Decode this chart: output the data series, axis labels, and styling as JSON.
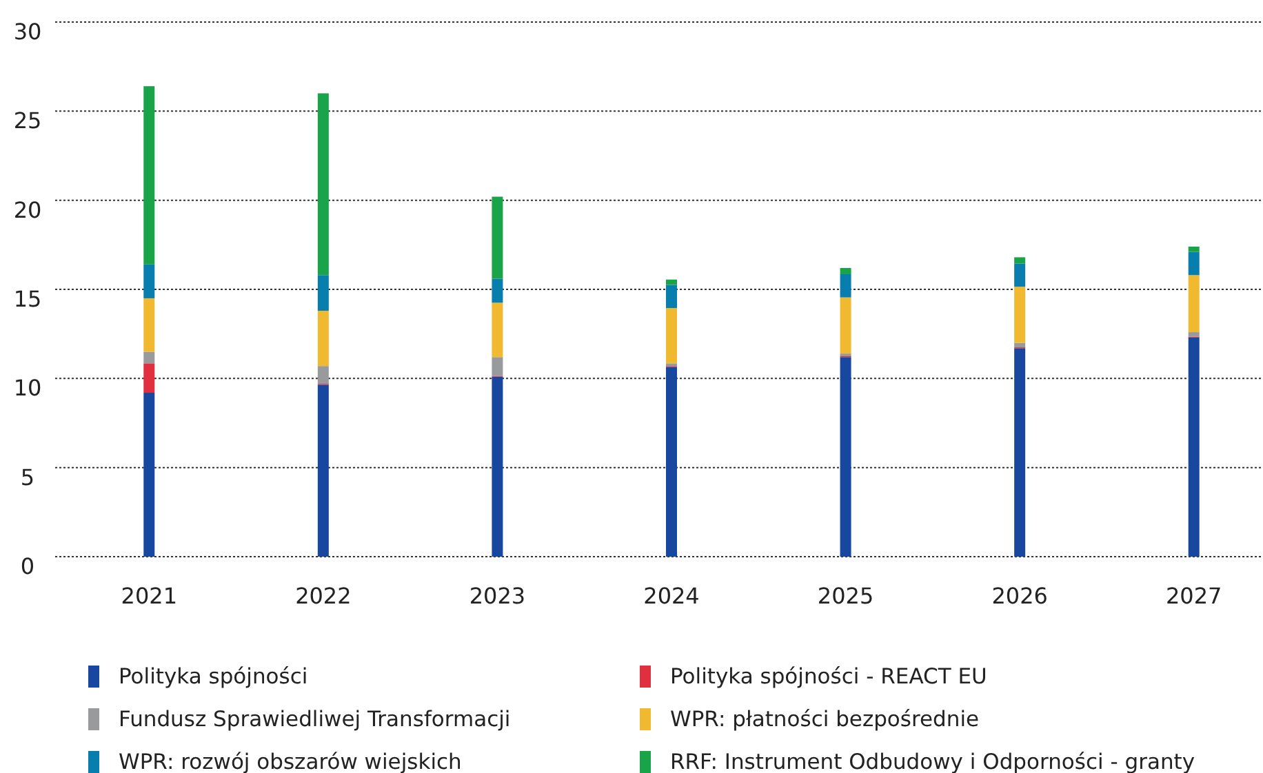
{
  "chart_data": {
    "type": "bar",
    "stacked": true,
    "categories": [
      "2021",
      "2022",
      "2023",
      "2024",
      "2025",
      "2026",
      "2027"
    ],
    "series": [
      {
        "name": "Polityka spójności",
        "color": "#17479e",
        "values": [
          9.2,
          9.65,
          10.1,
          10.65,
          11.2,
          11.7,
          12.3
        ]
      },
      {
        "name": "Polityka spójności - REACT EU",
        "color": "#e0303f",
        "values": [
          1.65,
          0.05,
          0.05,
          0.05,
          0.05,
          0.05,
          0.05
        ]
      },
      {
        "name": "Fundusz Sprawiedliwej Transformacji",
        "color": "#999a9c",
        "values": [
          0.65,
          1.0,
          1.05,
          0.15,
          0.15,
          0.25,
          0.25
        ]
      },
      {
        "name": "WPR: płatności bezpośrednie",
        "color": "#f0b92f",
        "values": [
          3.0,
          3.1,
          3.05,
          3.1,
          3.15,
          3.15,
          3.2
        ]
      },
      {
        "name": "WPR: rozwój obszarów wiejskich",
        "color": "#077ead",
        "values": [
          1.9,
          2.0,
          1.35,
          1.3,
          1.3,
          1.3,
          1.3
        ]
      },
      {
        "name": "RRF: Instrument Odbudowy i Odporności - granty",
        "color": "#1aa44a",
        "values": [
          10.0,
          10.2,
          4.6,
          0.3,
          0.35,
          0.35,
          0.3
        ]
      }
    ],
    "ylim": [
      0,
      30
    ],
    "yticks": [
      0,
      5,
      10,
      15,
      20,
      25,
      30
    ],
    "grid": "y",
    "legend": "bottom"
  }
}
